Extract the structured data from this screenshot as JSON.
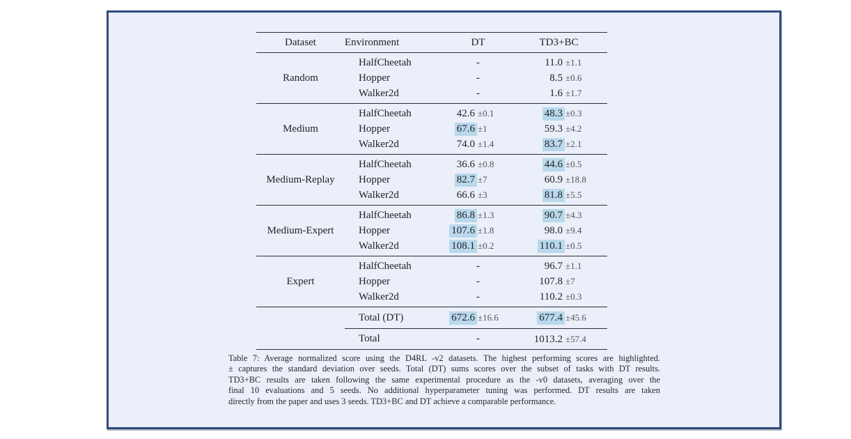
{
  "panel": {
    "background_color": "#ebeff9",
    "border_color": "#2e4b7d",
    "highlight_color": "#b9d8ec"
  },
  "table": {
    "headers": [
      "Dataset",
      "Environment",
      "DT",
      "TD3+BC"
    ],
    "dash": "-",
    "plus_minus": "±",
    "groups": [
      {
        "dataset": "Random",
        "rows": [
          {
            "env": "HalfCheetah",
            "dt": null,
            "td3": {
              "v": "11.0",
              "e": "1.1",
              "hl": false
            }
          },
          {
            "env": "Hopper",
            "dt": null,
            "td3": {
              "v": "8.5",
              "e": "0.6",
              "hl": false
            }
          },
          {
            "env": "Walker2d",
            "dt": null,
            "td3": {
              "v": "1.6",
              "e": "1.7",
              "hl": false
            }
          }
        ]
      },
      {
        "dataset": "Medium",
        "rows": [
          {
            "env": "HalfCheetah",
            "dt": {
              "v": "42.6",
              "e": "0.1",
              "hl": false
            },
            "td3": {
              "v": "48.3",
              "e": "0.3",
              "hl": true
            }
          },
          {
            "env": "Hopper",
            "dt": {
              "v": "67.6",
              "e": "1",
              "hl": true
            },
            "td3": {
              "v": "59.3",
              "e": "4.2",
              "hl": false
            }
          },
          {
            "env": "Walker2d",
            "dt": {
              "v": "74.0",
              "e": "1.4",
              "hl": false
            },
            "td3": {
              "v": "83.7",
              "e": "2.1",
              "hl": true
            }
          }
        ]
      },
      {
        "dataset": "Medium-Replay",
        "rows": [
          {
            "env": "HalfCheetah",
            "dt": {
              "v": "36.6",
              "e": "0.8",
              "hl": false
            },
            "td3": {
              "v": "44.6",
              "e": "0.5",
              "hl": true
            }
          },
          {
            "env": "Hopper",
            "dt": {
              "v": "82.7",
              "e": "7",
              "hl": true
            },
            "td3": {
              "v": "60.9",
              "e": "18.8",
              "hl": false
            }
          },
          {
            "env": "Walker2d",
            "dt": {
              "v": "66.6",
              "e": "3",
              "hl": false
            },
            "td3": {
              "v": "81.8",
              "e": "5.5",
              "hl": true
            }
          }
        ]
      },
      {
        "dataset": "Medium-Expert",
        "rows": [
          {
            "env": "HalfCheetah",
            "dt": {
              "v": "86.8",
              "e": "1.3",
              "hl": true
            },
            "td3": {
              "v": "90.7",
              "e": "4.3",
              "hl": true
            }
          },
          {
            "env": "Hopper",
            "dt": {
              "v": "107.6",
              "e": "1.8",
              "hl": true
            },
            "td3": {
              "v": "98.0",
              "e": "9.4",
              "hl": false
            }
          },
          {
            "env": "Walker2d",
            "dt": {
              "v": "108.1",
              "e": "0.2",
              "hl": true
            },
            "td3": {
              "v": "110.1",
              "e": "0.5",
              "hl": true
            }
          }
        ]
      },
      {
        "dataset": "Expert",
        "rows": [
          {
            "env": "HalfCheetah",
            "dt": null,
            "td3": {
              "v": "96.7",
              "e": "1.1",
              "hl": false
            }
          },
          {
            "env": "Hopper",
            "dt": null,
            "td3": {
              "v": "107.8",
              "e": "7",
              "hl": false
            }
          },
          {
            "env": "Walker2d",
            "dt": null,
            "td3": {
              "v": "110.2",
              "e": "0.3",
              "hl": false
            }
          }
        ]
      }
    ],
    "totals": [
      {
        "label": "Total (DT)",
        "dt": {
          "v": "672.6",
          "e": "16.6",
          "hl": true
        },
        "td3": {
          "v": "677.4",
          "e": "45.6",
          "hl": true
        }
      },
      {
        "label": "Total",
        "dt": null,
        "td3": {
          "v": "1013.2",
          "e": "57.4",
          "hl": false
        }
      }
    ]
  },
  "caption": {
    "lines": [
      "Table 7: Average normalized score using the D4RL -v2 datasets. The highest performing scores are highlighted.",
      "± captures the standard deviation over seeds. Total (DT) sums scores over the subset of tasks with DT results.",
      "TD3+BC results are taken following the same experimental procedure as the -v0 datasets, averaging over the",
      "final 10 evaluations and 5 seeds. No additional hyperparameter tuning was performed. DT results are taken",
      "directly from the paper and uses 3 seeds. TD3+BC and DT achieve a comparable performance."
    ]
  }
}
